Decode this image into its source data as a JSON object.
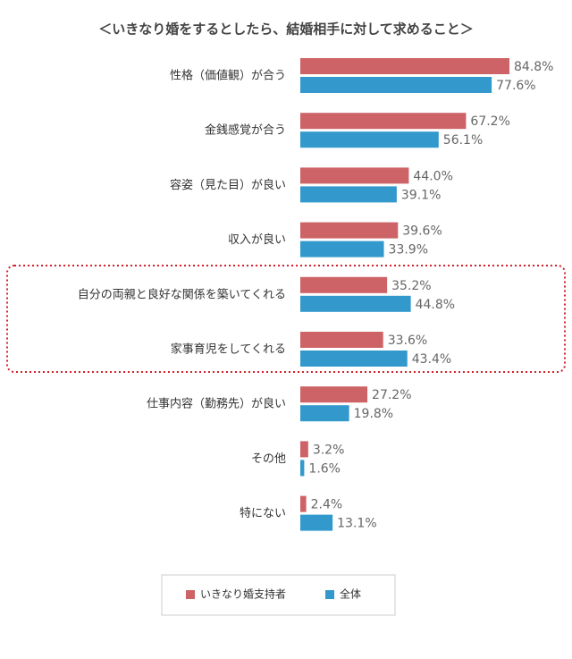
{
  "chart_data": {
    "type": "hbar",
    "title": "＜いきなり婚をするとしたら、結婚相手に対して求めること＞",
    "categories": [
      "性格（価値観）が合う",
      "金銭感覚が合う",
      "容姿（見た目）が良い",
      "収入が良い",
      "自分の両親と良好な関係を築いてくれる",
      "家事育児をしてくれる",
      "仕事内容（勤務先）が良い",
      "その他",
      "特にない"
    ],
    "series": [
      {
        "name": "いきなり婚支持者",
        "color": "#cd6366",
        "values": [
          84.8,
          67.2,
          44.0,
          39.6,
          35.2,
          33.6,
          27.2,
          3.2,
          2.4
        ],
        "value_labels": [
          "84.8%",
          "67.2%",
          "44.0%",
          "39.6%",
          "35.2%",
          "33.6%",
          "27.2%",
          "3.2%",
          "2.4%"
        ]
      },
      {
        "name": "全体",
        "color": "#3399cc",
        "values": [
          77.6,
          56.1,
          39.1,
          33.9,
          44.8,
          43.4,
          19.8,
          1.6,
          13.1
        ],
        "value_labels": [
          "77.6%",
          "56.1%",
          "39.1%",
          "33.9%",
          "44.8%",
          "43.4%",
          "19.8%",
          "1.6%",
          "13.1%"
        ]
      }
    ]
  }
}
